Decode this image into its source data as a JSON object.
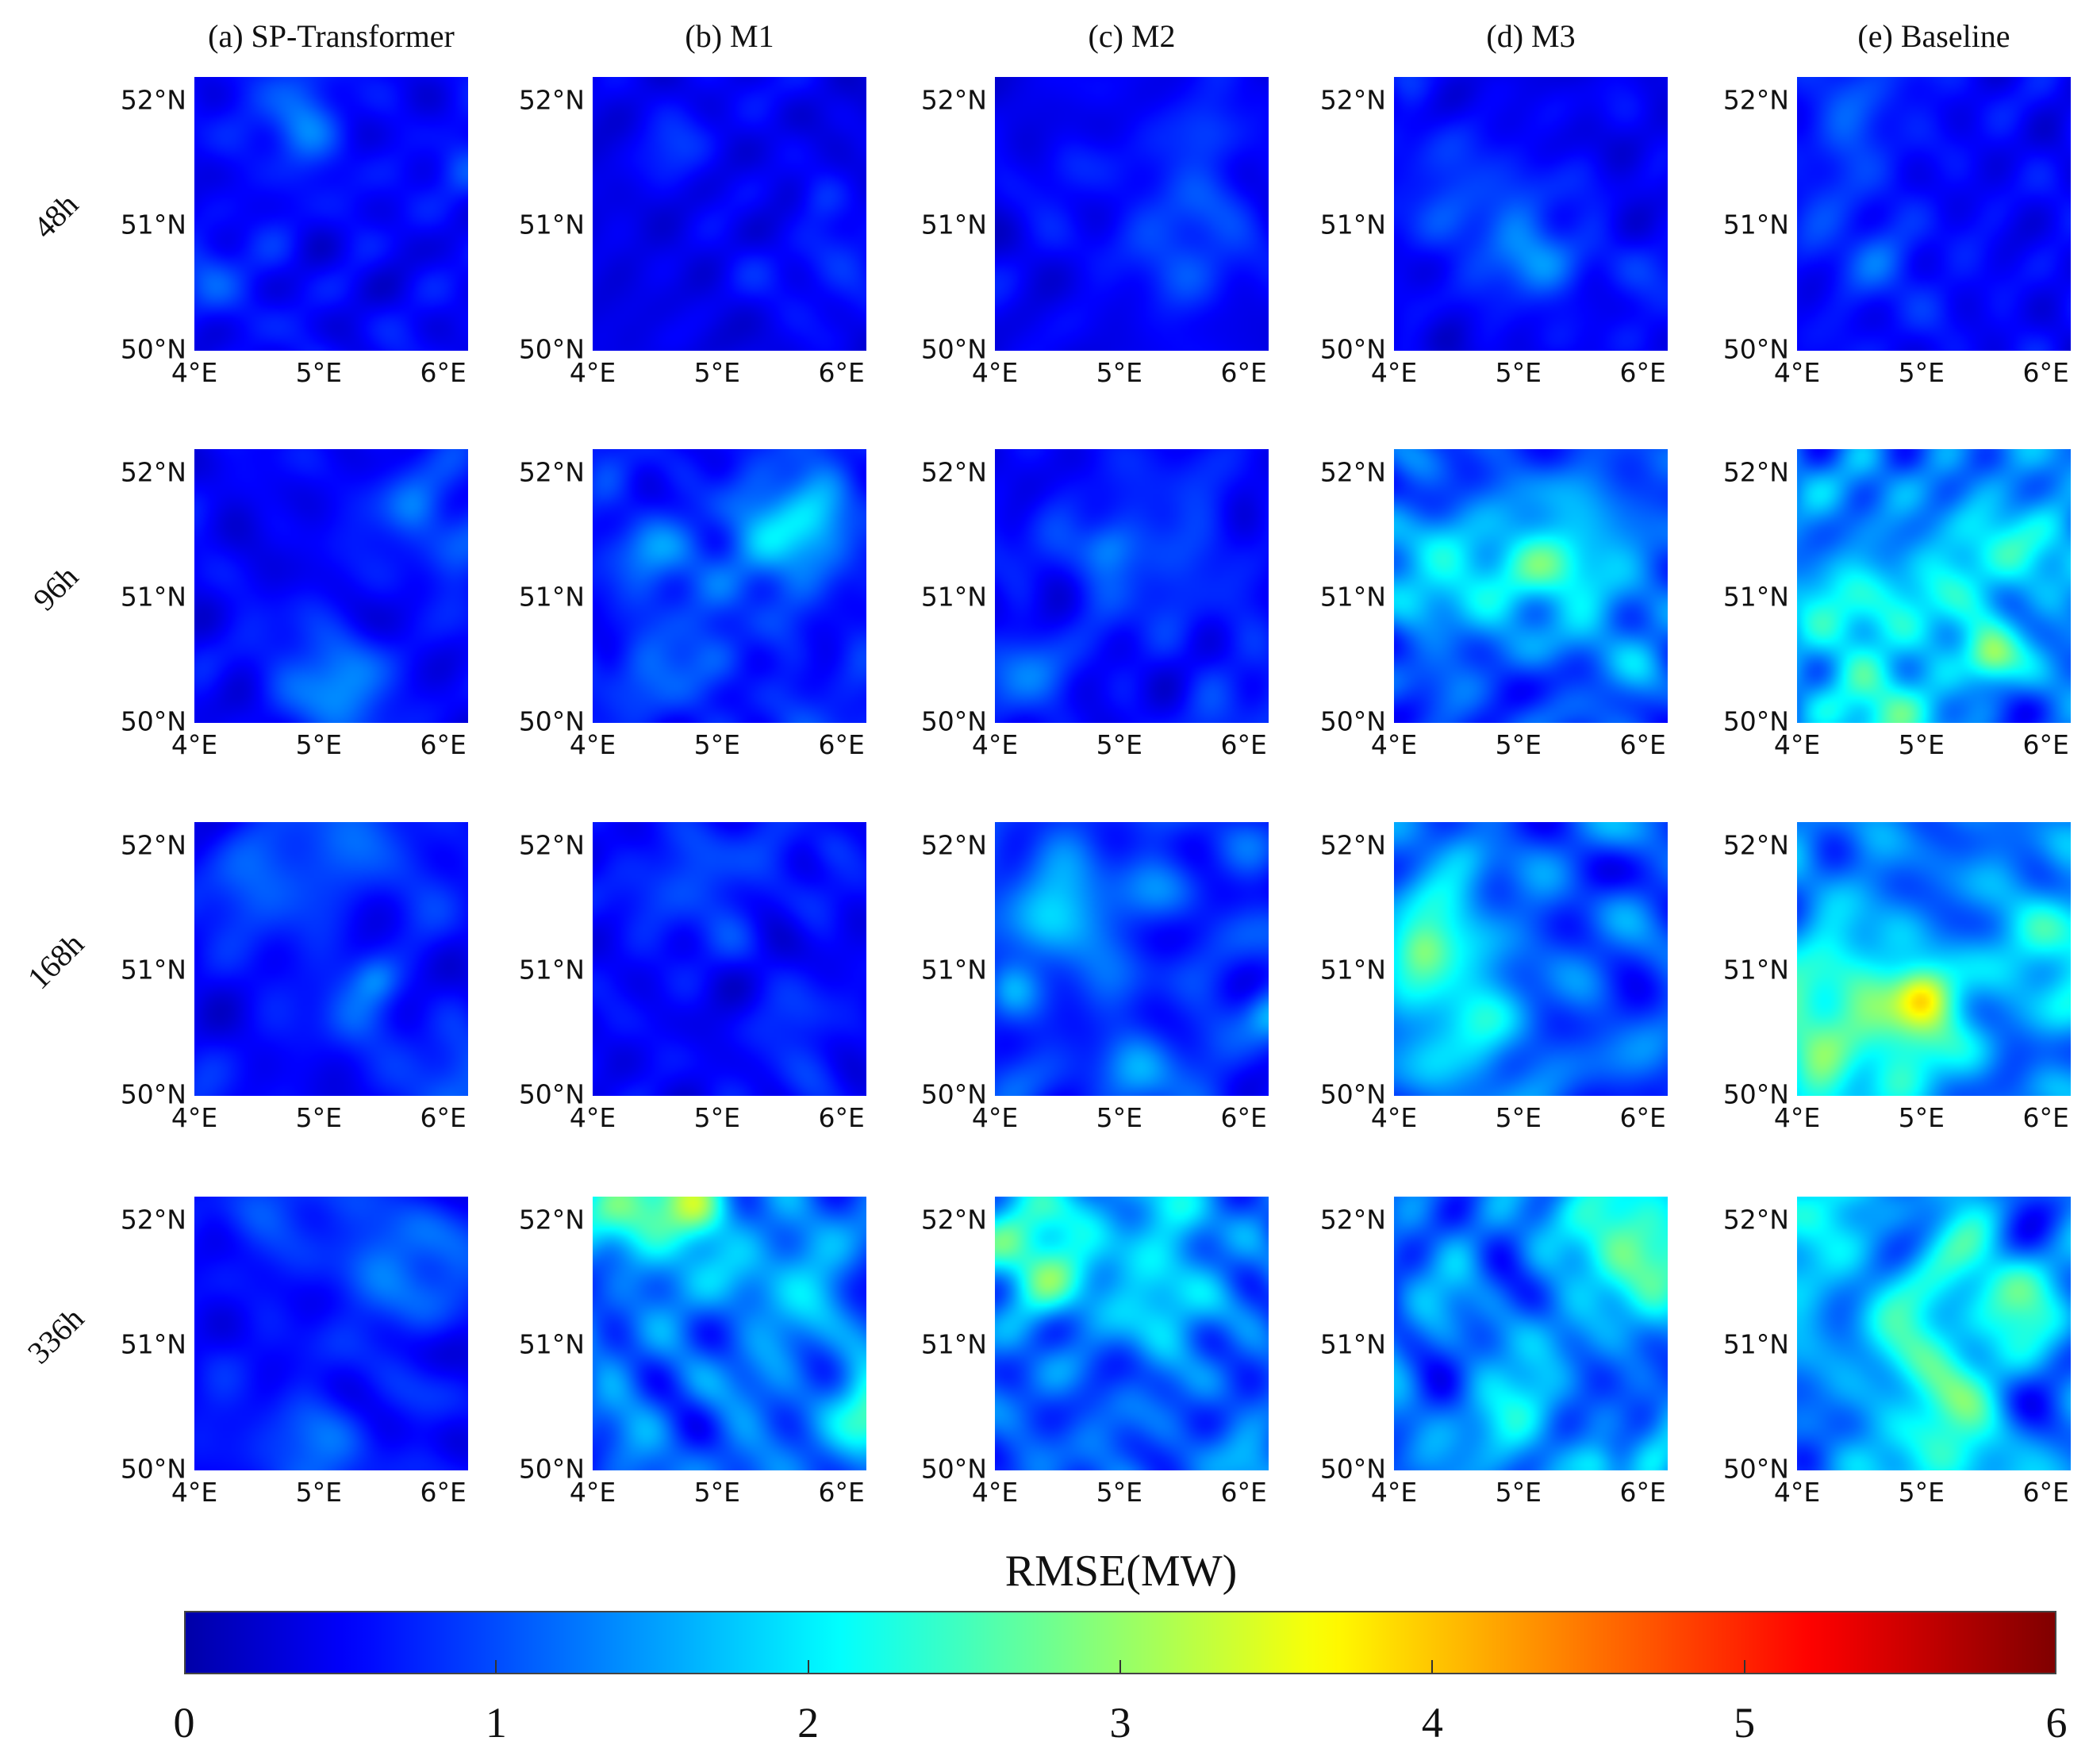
{
  "chart_data": {
    "type": "heatmap",
    "columns": [
      "(a) SP-Transformer",
      "(b) M1",
      "(c) M2",
      "(d) M3",
      "(e) Baseline"
    ],
    "rows": [
      "48h",
      "96h",
      "168h",
      "336h"
    ],
    "y_ticks": [
      "52°N",
      "51°N",
      "50°N"
    ],
    "x_ticks": [
      "4°E",
      "5°E",
      "6°E"
    ],
    "lon_range": [
      4,
      6.2
    ],
    "lat_range": [
      50,
      52.2
    ],
    "colorbar": {
      "label": "RMSE(MW)",
      "range": [
        0,
        6
      ],
      "ticks": [
        "0",
        "1",
        "2",
        "3",
        "4",
        "5",
        "6"
      ],
      "colormap": "jet"
    },
    "mean_rmse_intensity": [
      [
        0.9,
        0.7,
        0.8,
        0.8,
        0.9
      ],
      [
        0.9,
        1.2,
        1.0,
        1.6,
        2.2
      ],
      [
        1.0,
        0.9,
        1.4,
        1.8,
        2.2
      ],
      [
        1.0,
        2.0,
        1.9,
        2.1,
        2.3
      ]
    ]
  }
}
